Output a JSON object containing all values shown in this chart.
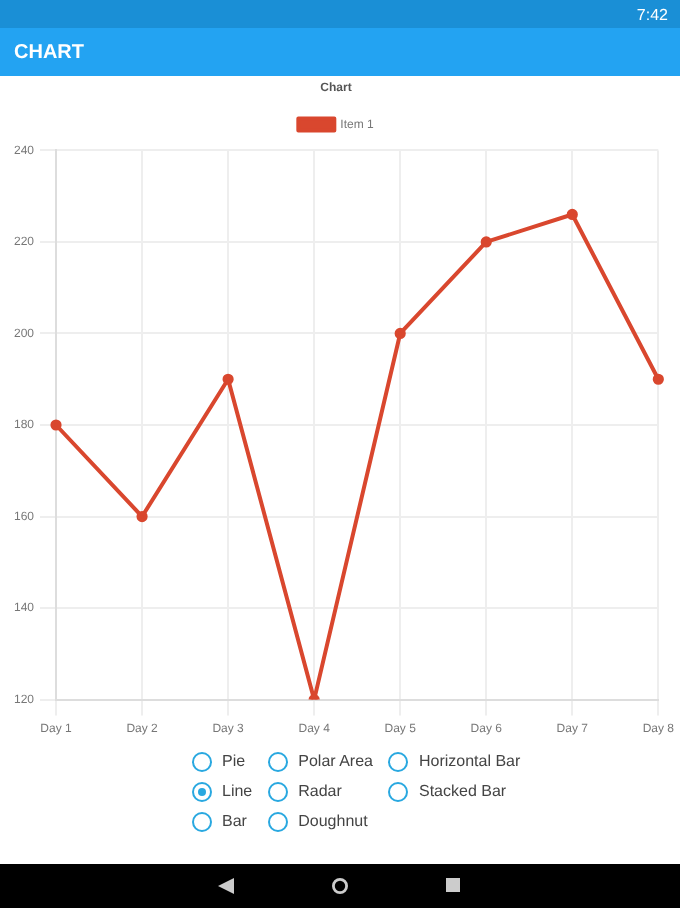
{
  "chart_data": {
    "type": "line",
    "title": "Chart",
    "categories": [
      "Day 1",
      "Day 2",
      "Day 3",
      "Day 4",
      "Day 5",
      "Day 6",
      "Day 7",
      "Day 8"
    ],
    "series": [
      {
        "name": "Item 1",
        "color": "#d9472e",
        "values": [
          180,
          160,
          190,
          120,
          200,
          220,
          226,
          190
        ]
      }
    ],
    "ylim": [
      120,
      240
    ],
    "yticks": [
      120,
      140,
      160,
      180,
      200,
      220,
      240
    ],
    "grid": true,
    "legend": "top",
    "marker": "circle",
    "line_style": "solid",
    "annotations": [
      "7:42",
      "CHART",
      "Pie",
      "Line",
      "Bar",
      "Polar Area",
      "Radar",
      "Doughnut",
      "Horizontal Bar",
      "Stacked Bar"
    ]
  }
}
